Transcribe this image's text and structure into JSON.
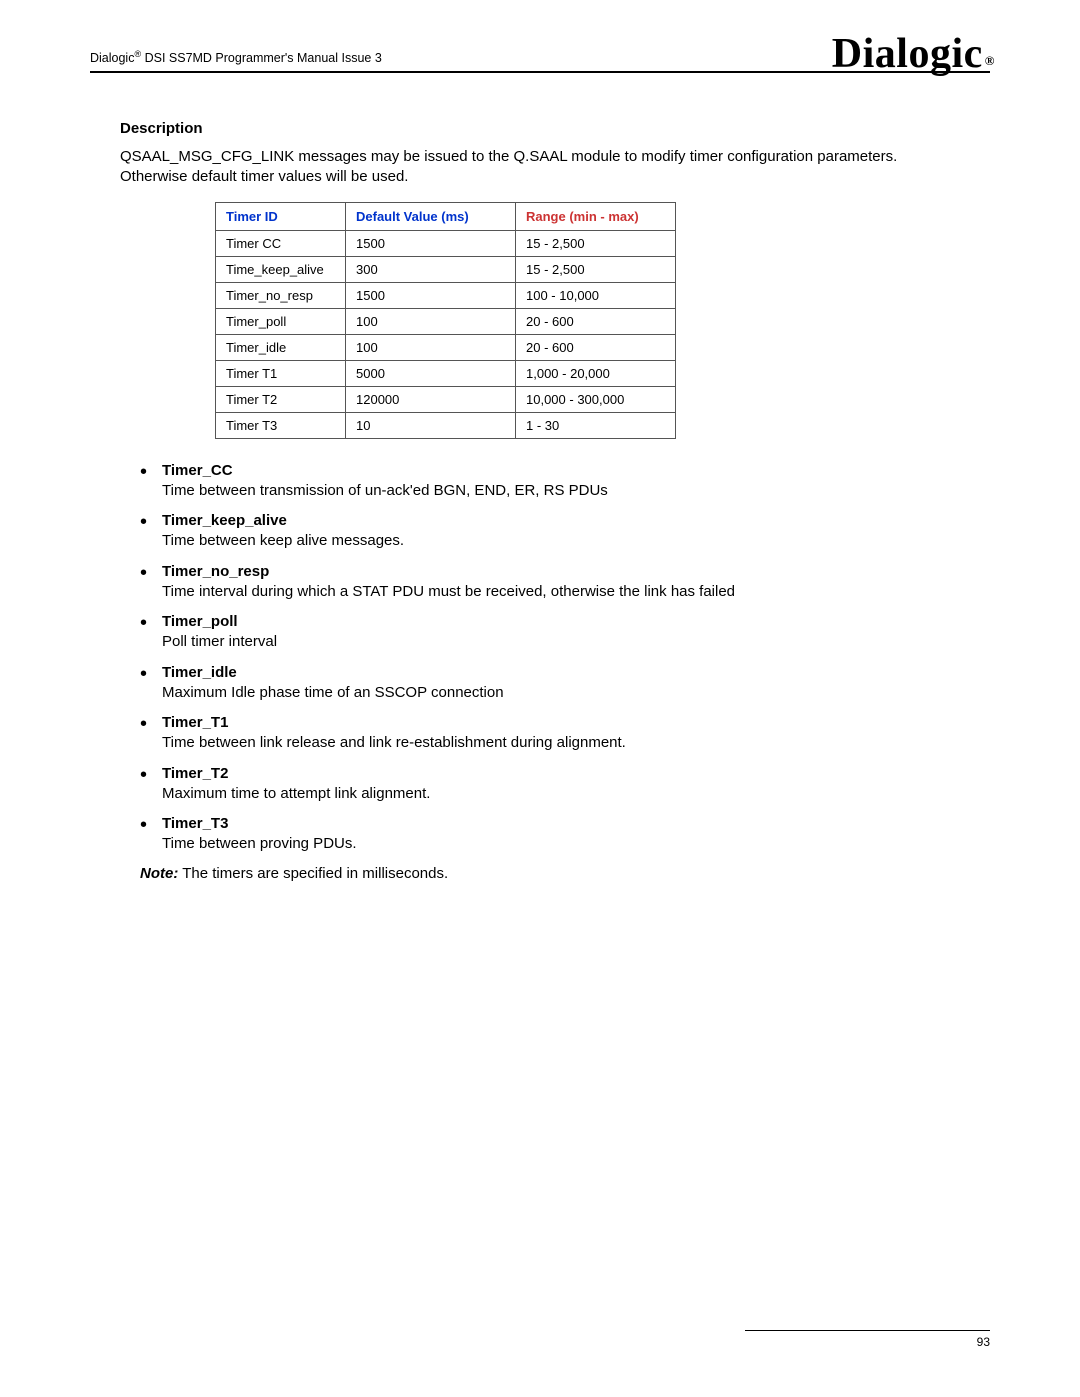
{
  "header": {
    "brand": "Dialogic",
    "reg1": "®",
    "doc_title": " DSI SS7MD Programmer's Manual  Issue 3"
  },
  "logo": {
    "text": "Dialogic",
    "reg": "®"
  },
  "section": {
    "title": "Description",
    "paragraph": "QSAAL_MSG_CFG_LINK messages may be issued to the Q.SAAL module to modify timer configuration parameters. Otherwise default timer values will be used."
  },
  "table": {
    "headers": {
      "id": "Timer ID",
      "def": "Default Value (ms)",
      "range": "Range (min - max)"
    },
    "rows": [
      {
        "id": "Timer CC",
        "def": "1500",
        "range": "15 - 2,500"
      },
      {
        "id": "Time_keep_alive",
        "def": "300",
        "range": "15 - 2,500"
      },
      {
        "id": "Timer_no_resp",
        "def": "1500",
        "range": "100 - 10,000"
      },
      {
        "id": "Timer_poll",
        "def": "100",
        "range": "20 - 600"
      },
      {
        "id": "Timer_idle",
        "def": "100",
        "range": "20 - 600"
      },
      {
        "id": "Timer T1",
        "def": "5000",
        "range": "1,000 - 20,000"
      },
      {
        "id": "Timer T2",
        "def": "120000",
        "range": "10,000 - 300,000"
      },
      {
        "id": "Timer T3",
        "def": "10",
        "range": "1 - 30"
      }
    ]
  },
  "definitions": [
    {
      "term": "Timer_CC",
      "desc": "Time between transmission of un-ack'ed BGN, END, ER, RS PDUs"
    },
    {
      "term": "Timer_keep_alive",
      "desc": "Time between keep alive messages."
    },
    {
      "term": "Timer_no_resp",
      "desc": "Time interval during which a STAT PDU must be received, otherwise the link has failed"
    },
    {
      "term": "Timer_poll",
      "desc": "Poll timer interval"
    },
    {
      "term": "Timer_idle",
      "desc": "Maximum Idle phase time of an SSCOP connection"
    },
    {
      "term": "Timer_T1",
      "desc": "Time between link release and link re-establishment during alignment."
    },
    {
      "term": "Timer_T2",
      "desc": "Maximum time to attempt link alignment."
    },
    {
      "term": "Timer_T3",
      "desc": "Time between proving PDUs."
    }
  ],
  "note": {
    "label": "Note:",
    "text": "  The timers are specified in milliseconds."
  },
  "footer": {
    "page": "93"
  }
}
